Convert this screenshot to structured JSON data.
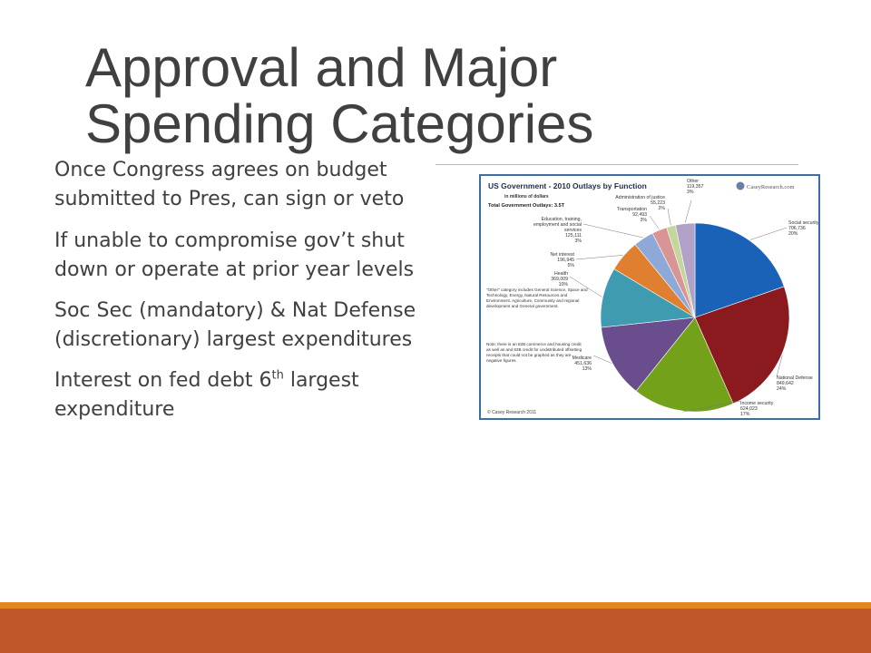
{
  "slide": {
    "title_line1": "Approval and Major",
    "title_line2": "Spending Categories",
    "bullets": {
      "b1": "Once Congress agrees on budget submitted to Pres, can sign or veto",
      "b2": "If unable to compromise gov’t shut down or operate at prior year levels",
      "b3": "Soc Sec (mandatory) & Nat Defense (discretionary) largest expenditures",
      "b4_pre": "Interest on fed debt 6",
      "b4_sup": "th",
      "b4_post": " largest expenditure"
    }
  },
  "colors": {
    "title": "#404040",
    "body_text": "#404040",
    "accent_orange": "#e58423",
    "accent_rust": "#c0572a",
    "chart_border": "#3a6ea5"
  },
  "chart_data": {
    "type": "pie",
    "title": "US Government - 2010 Outlays by Function",
    "subtitle": "in millions of dollars",
    "total_label": "Total Government Outlays: 3.5T",
    "logo_text": "CaseyResearch.com",
    "note_other": "\"Other\" category includes General Science, Space and Technology, Energy, Natural Resources and Environment, Agriculture, Community and regional development and General government.",
    "note_commerce": "Note: there is an 82B commerce and housing credit as well as and 82B credit for undistributed offsetting receipts that could not be graphed as they are negative figures.",
    "copyright": "© Casey Research 2011",
    "slices": [
      {
        "label": "Social security",
        "value": 706736,
        "value_text": "706,736",
        "pct": "20%",
        "color": "#1a62b8"
      },
      {
        "label": "National Defense",
        "value": 849642,
        "value_text": "849,642",
        "pct": "24%",
        "color": "#8b1a1f"
      },
      {
        "label": "Income security",
        "value": 624023,
        "value_text": "624,023",
        "pct": "17%",
        "color": "#74a11a"
      },
      {
        "label": "Medicare",
        "value": 451636,
        "value_text": "451,636",
        "pct": "13%",
        "color": "#6a4d8c"
      },
      {
        "label": "Health",
        "value": 369009,
        "value_text": "369,009",
        "pct": "10%",
        "color": "#3f9bb0"
      },
      {
        "label": "Net interest",
        "value": 196945,
        "value_text": "196,945",
        "pct": "5%",
        "color": "#e07f2f"
      },
      {
        "label": "Education, training, employment and social services",
        "value": 125111,
        "value_text": "125,111",
        "pct": "3%",
        "color": "#8ea9d8"
      },
      {
        "label": "Transportation",
        "value": 92493,
        "value_text": "92,493",
        "pct": "3%",
        "color": "#d99594"
      },
      {
        "label": "Administration of justice",
        "value": 55223,
        "value_text": "55,223",
        "pct": "2%",
        "color": "#c3d69b"
      },
      {
        "label": "Other",
        "value": 119357,
        "value_text": "119,357",
        "pct": "3%",
        "color": "#b2a1c7"
      }
    ]
  }
}
